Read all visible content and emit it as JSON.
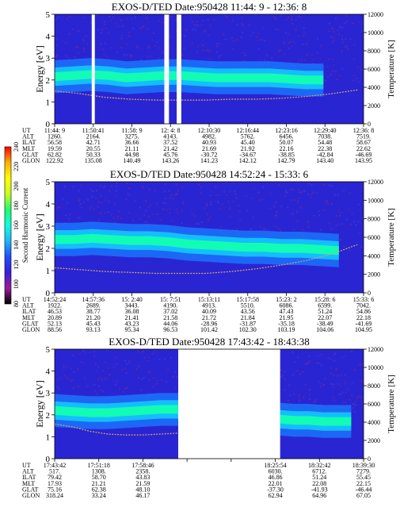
{
  "colors": {
    "background": "#ffffff",
    "spectrogram_base": "#2a25d2",
    "band_mid": "#1a78ff",
    "band_peak": "#12ffb0",
    "temperature_trace": "#d8a070",
    "gap": "#ffffff"
  },
  "colorbar": {
    "label": "Second Harmonic Current",
    "ticks": [
      "80",
      "100",
      "120",
      "140",
      "160",
      "180",
      "200",
      "220",
      "240"
    ],
    "stops": [
      "#000000",
      "#9a1d9a",
      "#3a1dde",
      "#1d4fff",
      "#1db4ff",
      "#10ffe0",
      "#1dff6a",
      "#c8ff1d",
      "#ffff00",
      "#ffb000",
      "#ff0000"
    ]
  },
  "chart_data": [
    {
      "type": "heatmap",
      "title": "EXOS-D/TED   Date:950428  11:44: 9 - 12:36: 8",
      "ylabel": "Energy [eV]",
      "y2label": "Temperature [K]",
      "ylim": [
        0,
        5
      ],
      "y2lim": [
        0,
        12000
      ],
      "yticks": [
        "0",
        "1",
        "2",
        "3",
        "4",
        "5"
      ],
      "y2ticks": [
        "0",
        "2000",
        "4000",
        "6000",
        "8000",
        "10000",
        "12000"
      ],
      "band_center_ev": [
        2.15,
        2.2,
        2.25,
        2.2,
        2.1,
        2.15,
        2.2,
        2.2,
        2.15,
        2.1,
        2.1,
        2.1,
        2.1,
        2.05,
        2.0,
        2.0
      ],
      "band_extent": [
        0,
        0.87
      ],
      "gaps": [
        [
          0.12,
          0.13
        ],
        [
          0.355,
          0.37
        ],
        [
          0.395,
          0.41
        ]
      ],
      "temperature_k": [
        3600,
        3300,
        2900,
        2700,
        2600,
        2600,
        2600,
        2700,
        2700,
        2800,
        3000,
        3300,
        3700
      ],
      "rows": [
        {
          "label": "UT",
          "values": [
            "11:44: 9",
            "11:50:41",
            "11:58: 9",
            "12: 4: 8",
            "12:10:30",
            "12:16:44",
            "12:23:16",
            "12:29:40",
            "12:36: 8"
          ]
        },
        {
          "label": "ALT",
          "values": [
            "1260.",
            "2164.",
            "3275.",
            "4143.",
            "4982.",
            "5762.",
            "6456.",
            "7038.",
            "7519."
          ]
        },
        {
          "label": "ILAT",
          "values": [
            "56.58",
            "42.71",
            "36.66",
            "37.52",
            "40.93",
            "45.40",
            "50.07",
            "54.48",
            "58.67"
          ]
        },
        {
          "label": "MLT",
          "values": [
            "19.59",
            "20.55",
            "21.11",
            "21.42",
            "21.69",
            "21.92",
            "22.16",
            "22.38",
            "22.62"
          ]
        },
        {
          "label": "GLAT",
          "values": [
            "62.82",
            "50.33",
            "44.98",
            "45.76",
            "-30.72",
            "-34.67",
            "-38.85",
            "-42.84",
            "-46.69"
          ]
        },
        {
          "label": "GLON",
          "values": [
            "122.92",
            "135.08",
            "140.49",
            "143.26",
            "141.23",
            "142.12",
            "142.79",
            "143.40",
            "143.95"
          ]
        }
      ]
    },
    {
      "type": "heatmap",
      "title": "EXOS-D/TED   Date:950428  14:52:24 - 15:33: 6",
      "ylabel": "Energy [eV]",
      "y2label": "Temperature [K]",
      "ylim": [
        0,
        5
      ],
      "y2lim": [
        0,
        12000
      ],
      "yticks": [
        "0",
        "1",
        "2",
        "3",
        "4",
        "5"
      ],
      "y2ticks": [
        "0",
        "2000",
        "4000",
        "6000",
        "8000",
        "10000",
        "12000"
      ],
      "band_center_ev": [
        2.4,
        2.4,
        2.45,
        2.4,
        2.35,
        2.35,
        2.3,
        2.2,
        2.15,
        2.1,
        2.05,
        2.05,
        2.0,
        2.0,
        1.95,
        1.9
      ],
      "band_extent": [
        0,
        0.92
      ],
      "gaps": [],
      "temperature_k": [
        2700,
        2500,
        2300,
        2200,
        2100,
        2100,
        2100,
        2300,
        2600,
        3000,
        3500,
        4200,
        5200
      ],
      "rows": [
        {
          "label": "UT",
          "values": [
            "14:52:24",
            "14:57:36",
            "15: 2:40",
            "15: 7:51",
            "15:13:11",
            "15:17:58",
            "15:23: 2",
            "15:28: 6",
            "15:33: 6"
          ]
        },
        {
          "label": "ALT",
          "values": [
            "1922.",
            "2689.",
            "3443.",
            "4190.",
            "4913.",
            "5510.",
            "6086.",
            "6599.",
            "7042."
          ]
        },
        {
          "label": "ILAT",
          "values": [
            "46.53",
            "38.77",
            "36.08",
            "37.02",
            "40.09",
            "43.56",
            "47.43",
            "51.24",
            "54.86"
          ]
        },
        {
          "label": "MLT",
          "values": [
            "20.89",
            "21.20",
            "21.41",
            "21.58",
            "21.72",
            "21.84",
            "21.95",
            "22.07",
            "22.18"
          ]
        },
        {
          "label": "GLAT",
          "values": [
            "52.13",
            "45.43",
            "43.23",
            "44.06",
            "-28.96",
            "-31.87",
            "-35.18",
            "-38.49",
            "-41.69"
          ]
        },
        {
          "label": "GLON",
          "values": [
            "88.56",
            "93.13",
            "95.34",
            "96.53",
            "101.42",
            "102.30",
            "103.19",
            "104.06",
            "104.95"
          ]
        }
      ]
    },
    {
      "type": "heatmap",
      "title": "EXOS-D/TED   Date:950428  17:43:42 - 18:43:38",
      "ylabel": "Energy [eV]",
      "y2label": "Temperature [K]",
      "ylim": [
        0,
        5
      ],
      "y2lim": [
        0,
        12000
      ],
      "yticks": [
        "0",
        "1",
        "2",
        "3",
        "4",
        "5"
      ],
      "y2ticks": [
        "0",
        "2000",
        "4000",
        "6000",
        "8000",
        "10000",
        "12000"
      ],
      "band_center_ev": [
        2.2,
        2.15,
        2.1,
        2.1,
        2.15,
        2.2,
        2.25,
        2.25
      ],
      "band_extent": [
        0,
        0.4
      ],
      "band2_center_ev": [
        1.8,
        1.75,
        1.75,
        1.7,
        1.7,
        1.7
      ],
      "band2_extent": [
        0.73,
        0.96
      ],
      "gaps": [
        [
          0.4,
          0.73
        ]
      ],
      "temperature_k": [
        3800,
        3500,
        3000,
        2700,
        2600,
        2600,
        2700,
        2800
      ],
      "rows": [
        {
          "label": "UT",
          "values": [
            "17:43:42",
            "17:51:18",
            "17:58:46",
            "",
            "",
            "18:25:54",
            "18:32:42",
            "18:39:30"
          ]
        },
        {
          "label": "ALT",
          "values": [
            "517.",
            "1308.",
            "2358.",
            "",
            "",
            "6030.",
            "6712.",
            "7279."
          ]
        },
        {
          "label": "ILAT",
          "values": [
            "79.42",
            "58.70",
            "43.83",
            "",
            "",
            "46.86",
            "51.24",
            "55.45"
          ]
        },
        {
          "label": "MLT",
          "values": [
            "17.93",
            "21.21",
            "21.59",
            "",
            "",
            "22.01",
            "22.08",
            "22.15"
          ]
        },
        {
          "label": "GLAT",
          "values": [
            "75.16",
            "62.38",
            "48.10",
            "",
            "",
            "-37.30",
            "-41.93",
            "-46.44"
          ]
        },
        {
          "label": "GLON",
          "values": [
            "318.24",
            "33.24",
            "46.17",
            "",
            "",
            "62.94",
            "64.96",
            "67.05"
          ]
        }
      ]
    }
  ]
}
